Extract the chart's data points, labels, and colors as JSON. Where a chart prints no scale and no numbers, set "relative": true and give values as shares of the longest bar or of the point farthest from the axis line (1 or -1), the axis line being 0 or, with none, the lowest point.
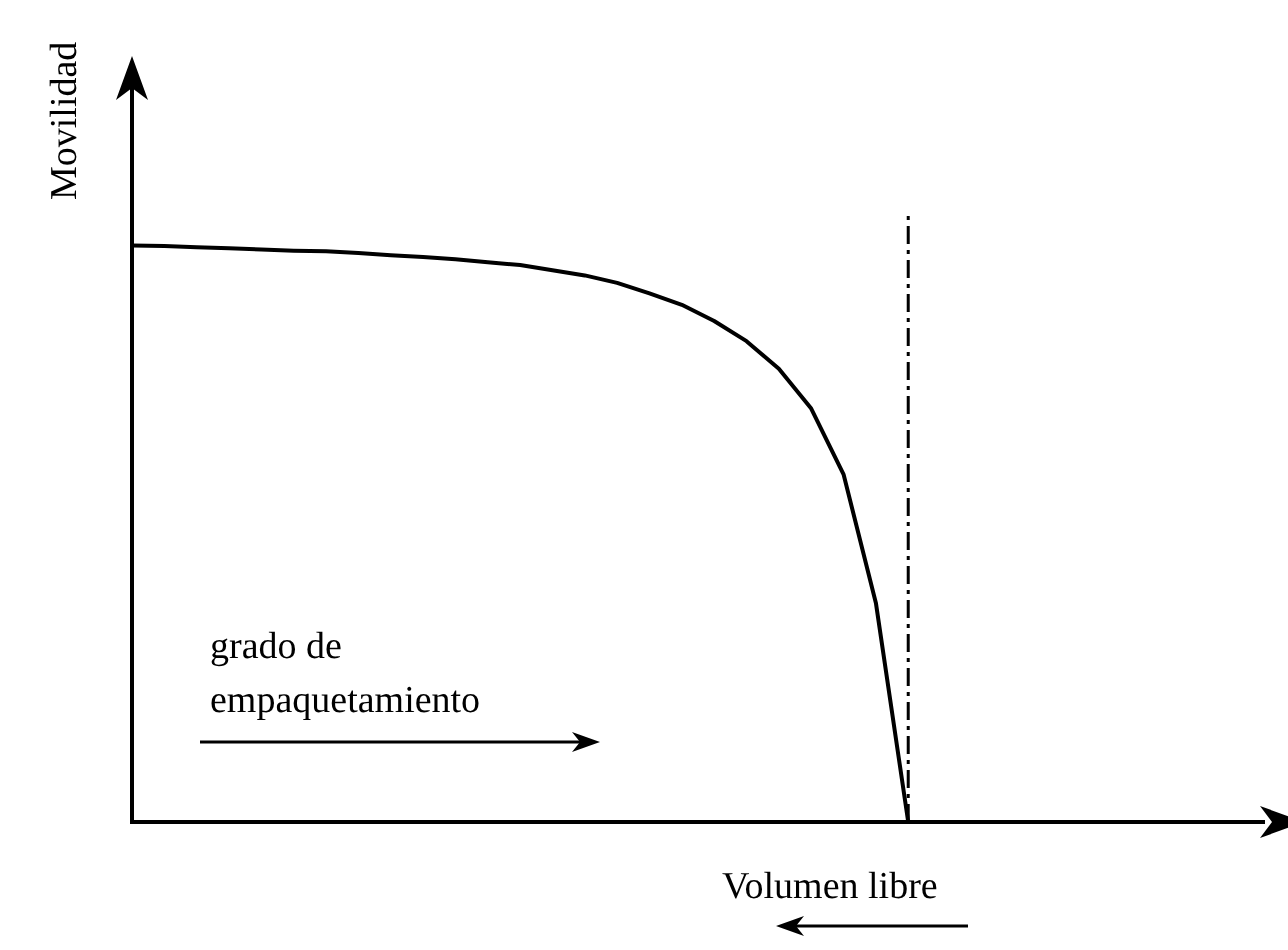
{
  "chart_data": {
    "type": "line",
    "relative": true,
    "ylabel": "Movilidad",
    "xlabel": "Volumen libre",
    "annotations": [
      "grado de empaquetamiento"
    ],
    "categories": [
      null,
      null,
      null,
      null,
      null,
      null,
      null,
      null,
      null,
      null,
      null,
      null,
      null,
      null,
      null,
      null,
      null,
      null,
      null,
      null,
      null,
      null,
      null,
      null,
      null,
      null,
      null,
      null,
      null,
      null,
      null,
      null,
      null,
      null,
      null,
      null
    ],
    "series": [
      {
        "color": "#000000",
        "values": [
          1.0,
          0.999,
          0.997,
          0.995,
          0.993,
          0.991,
          0.99,
          0.987,
          0.983,
          0.98,
          0.976,
          0.971,
          0.966,
          0.957,
          0.948,
          0.935,
          0.917,
          0.897,
          0.869,
          0.834,
          0.786,
          0.717,
          0.603,
          0.38,
          0,
          null,
          null,
          null,
          null,
          null,
          null,
          null,
          null,
          null,
          null,
          null
        ]
      }
    ],
    "grid": false,
    "legend": false,
    "marker": "none",
    "line_style": "solid"
  }
}
